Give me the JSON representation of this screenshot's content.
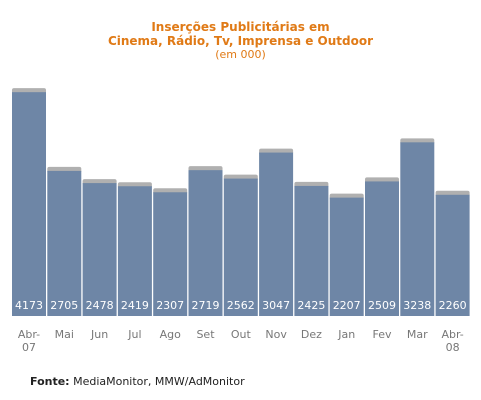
{
  "chart_data": {
    "type": "bar",
    "title_line1": "Inserções Publicitárias em",
    "title_line2": "Cinema, Rádio, Tv, Imprensa e Outdoor",
    "subtitle": "(em 000)",
    "categories": [
      [
        "Abr-",
        "07"
      ],
      [
        "Mai"
      ],
      [
        "Jun"
      ],
      [
        "Jul"
      ],
      [
        "Ago"
      ],
      [
        "Set"
      ],
      [
        "Out"
      ],
      [
        "Nov"
      ],
      [
        "Dez"
      ],
      [
        "Jan"
      ],
      [
        "Fev"
      ],
      [
        "Mar"
      ],
      [
        "Abr-",
        "08"
      ]
    ],
    "values": [
      4173,
      2705,
      2478,
      2419,
      2307,
      2719,
      2562,
      3047,
      2425,
      2207,
      2509,
      3238,
      2260
    ],
    "ylim": [
      0,
      4400
    ],
    "colors": {
      "bar": "#6e86a6",
      "bar_top": "#b0b0b0",
      "value_label": "#ffffff",
      "tick": "#777777",
      "title": "#e07a16"
    }
  },
  "footer": {
    "source_label": "Fonte:",
    "source_text": "MediaMonitor, MMW/AdMonitor"
  }
}
